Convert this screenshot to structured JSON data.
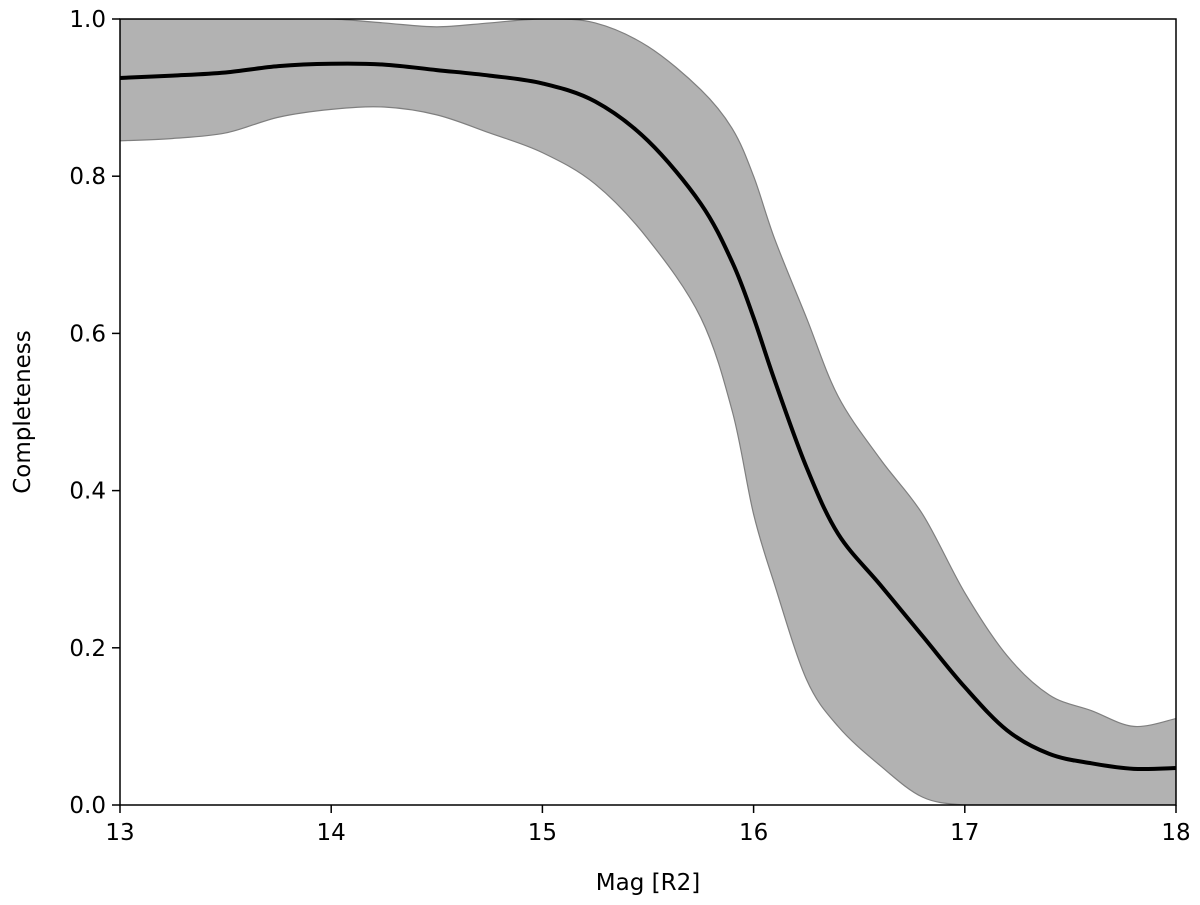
{
  "chart_data": {
    "type": "line",
    "title": "",
    "xlabel": "Mag [R2]",
    "ylabel": "Completeness",
    "xlim": [
      13,
      18
    ],
    "ylim": [
      0.0,
      1.0
    ],
    "xticks": [
      13,
      14,
      15,
      16,
      17,
      18
    ],
    "xtick_labels": [
      "13",
      "14",
      "15",
      "16",
      "17",
      "18"
    ],
    "yticks": [
      0.0,
      0.2,
      0.4,
      0.6,
      0.8,
      1.0
    ],
    "ytick_labels": [
      "0.0",
      "0.2",
      "0.4",
      "0.6",
      "0.8",
      "1.0"
    ],
    "grid": false,
    "colors": {
      "line": "#000000",
      "band_fill": "#b2b2b2",
      "band_edge": "#7f7f7f"
    },
    "series": [
      {
        "kind": "line",
        "x": [
          13.0,
          13.25,
          13.5,
          13.75,
          14.0,
          14.25,
          14.5,
          14.75,
          15.0,
          15.25,
          15.5,
          15.75,
          15.9,
          16.0,
          16.1,
          16.25,
          16.4,
          16.6,
          16.8,
          17.0,
          17.2,
          17.4,
          17.6,
          17.8,
          18.0
        ],
        "y": [
          0.925,
          0.928,
          0.932,
          0.94,
          0.943,
          0.942,
          0.935,
          0.928,
          0.918,
          0.895,
          0.845,
          0.765,
          0.69,
          0.62,
          0.54,
          0.43,
          0.345,
          0.28,
          0.215,
          0.15,
          0.095,
          0.065,
          0.053,
          0.046,
          0.047
        ]
      },
      {
        "kind": "band",
        "x": [
          13.0,
          13.25,
          13.5,
          13.75,
          14.0,
          14.25,
          14.5,
          14.75,
          15.0,
          15.25,
          15.5,
          15.75,
          15.9,
          16.0,
          16.1,
          16.25,
          16.4,
          16.6,
          16.8,
          17.0,
          17.2,
          17.4,
          17.6,
          17.8,
          18.0
        ],
        "upper": [
          1.0,
          1.0,
          1.0,
          1.0,
          1.0,
          0.995,
          0.99,
          0.995,
          1.0,
          0.995,
          0.965,
          0.91,
          0.86,
          0.8,
          0.72,
          0.62,
          0.52,
          0.44,
          0.37,
          0.27,
          0.19,
          0.14,
          0.12,
          0.1,
          0.11
        ],
        "lower": [
          0.845,
          0.848,
          0.855,
          0.875,
          0.885,
          0.888,
          0.878,
          0.855,
          0.83,
          0.79,
          0.72,
          0.62,
          0.5,
          0.37,
          0.28,
          0.16,
          0.1,
          0.05,
          0.01,
          0.0,
          0.0,
          0.0,
          0.0,
          0.0,
          0.0
        ]
      }
    ]
  }
}
